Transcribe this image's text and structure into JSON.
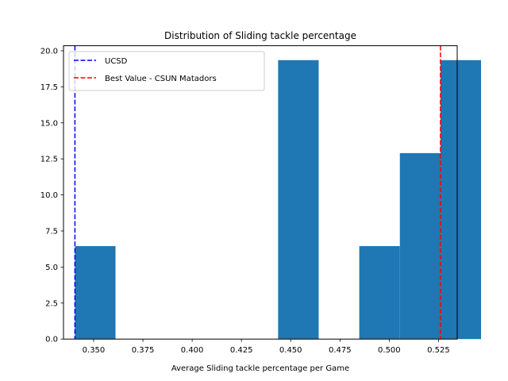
{
  "chart_data": {
    "type": "bar",
    "title": "Distribution of Sliding tackle percentage",
    "xlabel": "Average Sliding tackle percentage per Game",
    "ylabel": "",
    "xlim": [
      0.3347,
      0.5345
    ],
    "ylim": [
      0,
      20.35
    ],
    "x_ticks": [
      "0.350",
      "0.375",
      "0.400",
      "0.425",
      "0.450",
      "0.475",
      "0.500",
      "0.525"
    ],
    "y_ticks": [
      "0.0",
      "2.5",
      "5.0",
      "7.5",
      "10.0",
      "12.5",
      "15.0",
      "17.5",
      "20.0"
    ],
    "bin_edges": [
      0.3405,
      0.3611,
      0.3817,
      0.4024,
      0.423,
      0.4436,
      0.4642,
      0.4848,
      0.5054,
      0.526,
      0.5466
    ],
    "bins": [
      {
        "x0": 0.3405,
        "x1": 0.3611,
        "value": 6.45
      },
      {
        "x0": 0.3611,
        "x1": 0.3817,
        "value": 0
      },
      {
        "x0": 0.3817,
        "x1": 0.4024,
        "value": 0
      },
      {
        "x0": 0.4024,
        "x1": 0.423,
        "value": 0
      },
      {
        "x0": 0.423,
        "x1": 0.4436,
        "value": 0
      },
      {
        "x0": 0.4436,
        "x1": 0.4642,
        "value": 19.35
      },
      {
        "x0": 0.4642,
        "x1": 0.4848,
        "value": 0
      },
      {
        "x0": 0.4848,
        "x1": 0.5054,
        "value": 6.45
      },
      {
        "x0": 0.5054,
        "x1": 0.526,
        "value": 12.9
      },
      {
        "x0": 0.526,
        "x1": 0.5466,
        "value": 19.35
      }
    ],
    "bar_color": "#1f77b4",
    "vlines": [
      {
        "name": "UCSD",
        "x": 0.3405,
        "color": "#0000ff",
        "style": "dashed"
      },
      {
        "name": "Best Value - CSUN Matadors",
        "x": 0.526,
        "color": "#ff0000",
        "style": "dashed"
      }
    ],
    "legend": {
      "placement": "top-left",
      "entries": [
        "UCSD",
        "Best Value - CSUN Matadors"
      ]
    },
    "grid": false
  }
}
